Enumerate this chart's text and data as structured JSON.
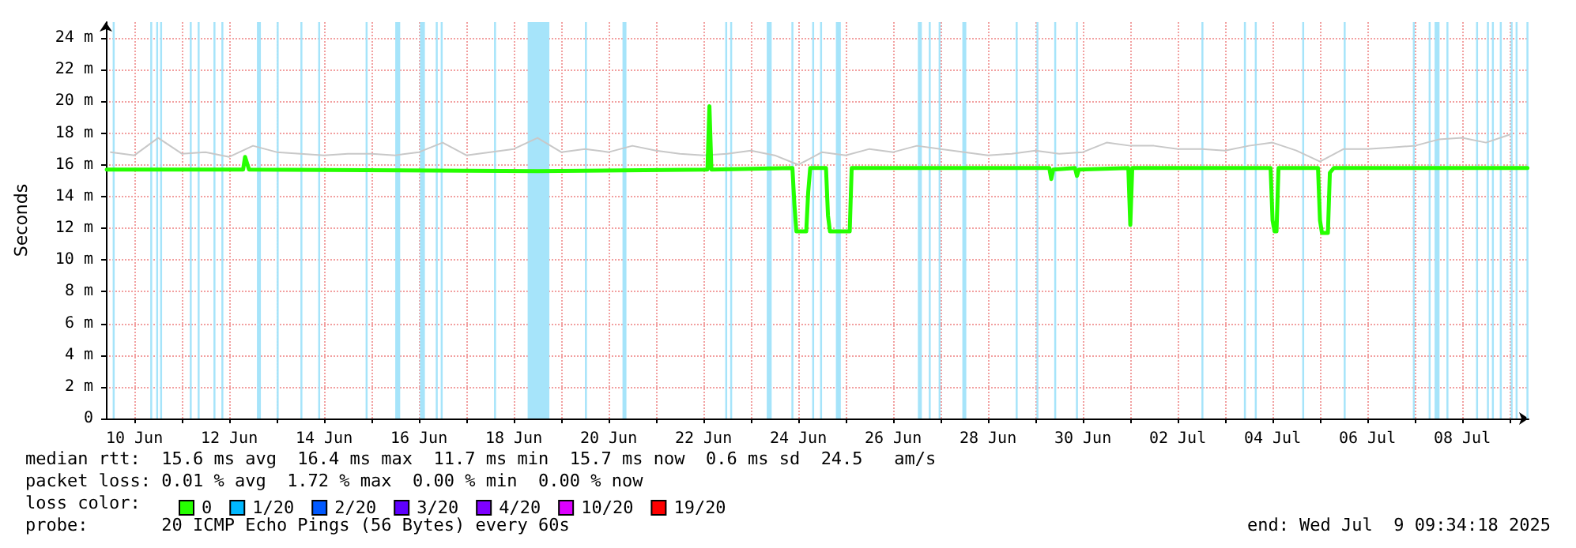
{
  "chart_data": {
    "type": "line",
    "ylabel": "Seconds",
    "legend_title": "loss color:",
    "legend": "bottom left",
    "grid": true,
    "marker": "none",
    "xlim": [
      "2025-06-09T09:34",
      "2025-07-09T09:34"
    ],
    "xticks": [
      {
        "value": "2025-06-10",
        "label": "10 Jun"
      },
      {
        "value": "2025-06-11",
        "label": null
      },
      {
        "value": "2025-06-12",
        "label": "12 Jun"
      },
      {
        "value": "2025-06-13",
        "label": null
      },
      {
        "value": "2025-06-14",
        "label": "14 Jun"
      },
      {
        "value": "2025-06-15",
        "label": null
      },
      {
        "value": "2025-06-16",
        "label": "16 Jun"
      },
      {
        "value": "2025-06-17",
        "label": null
      },
      {
        "value": "2025-06-18",
        "label": "18 Jun"
      },
      {
        "value": "2025-06-19",
        "label": null
      },
      {
        "value": "2025-06-20",
        "label": "20 Jun"
      },
      {
        "value": "2025-06-21",
        "label": null
      },
      {
        "value": "2025-06-22",
        "label": "22 Jun"
      },
      {
        "value": "2025-06-23",
        "label": null
      },
      {
        "value": "2025-06-24",
        "label": "24 Jun"
      },
      {
        "value": "2025-06-25",
        "label": null
      },
      {
        "value": "2025-06-26",
        "label": "26 Jun"
      },
      {
        "value": "2025-06-27",
        "label": null
      },
      {
        "value": "2025-06-28",
        "label": "28 Jun"
      },
      {
        "value": "2025-06-29",
        "label": null
      },
      {
        "value": "2025-06-30",
        "label": "30 Jun"
      },
      {
        "value": "2025-07-01",
        "label": null
      },
      {
        "value": "2025-07-02",
        "label": "02 Jul"
      },
      {
        "value": "2025-07-03",
        "label": null
      },
      {
        "value": "2025-07-04",
        "label": "04 Jul"
      },
      {
        "value": "2025-07-05",
        "label": null
      },
      {
        "value": "2025-07-06",
        "label": "06 Jul"
      },
      {
        "value": "2025-07-07",
        "label": null
      },
      {
        "value": "2025-07-08",
        "label": "08 Jul"
      },
      {
        "value": "2025-07-09",
        "label": null
      }
    ],
    "ylim": [
      0,
      25
    ],
    "yticks": [
      0,
      {
        "value": 2,
        "label": "2 m"
      },
      {
        "value": 4,
        "label": "4 m"
      },
      {
        "value": 6,
        "label": "6 m"
      },
      {
        "value": 8,
        "label": "8 m"
      },
      {
        "value": 10,
        "label": "10 m"
      },
      {
        "value": 12,
        "label": "12 m"
      },
      {
        "value": 14,
        "label": "14 m"
      },
      {
        "value": 16,
        "label": "16 m"
      },
      {
        "value": 18,
        "label": "18 m"
      },
      {
        "value": 20,
        "label": "20 m"
      },
      {
        "value": 22,
        "label": "22 m"
      },
      {
        "value": 24,
        "label": "24 m"
      }
    ],
    "series": [
      {
        "color": "#c8c8c8",
        "x": [
          "2025-06-09T12:00",
          "2025-06-10T00:00",
          "2025-06-10T12:00",
          "2025-06-11T00:00",
          "2025-06-11T12:00",
          "2025-06-12T00:00",
          "2025-06-12T12:00",
          "2025-06-13T00:00",
          "2025-06-13T12:00",
          "2025-06-14T00:00",
          "2025-06-14T12:00",
          "2025-06-15T00:00",
          "2025-06-15T12:00",
          "2025-06-16T00:00",
          "2025-06-16T12:00",
          "2025-06-17T00:00",
          "2025-06-17T12:00",
          "2025-06-18T00:00",
          "2025-06-18T12:00",
          "2025-06-19T00:00",
          "2025-06-19T12:00",
          "2025-06-20T00:00",
          "2025-06-20T12:00",
          "2025-06-21T00:00",
          "2025-06-21T12:00",
          "2025-06-22T00:00",
          "2025-06-22T12:00",
          "2025-06-23T00:00",
          "2025-06-23T12:00",
          "2025-06-24T00:00",
          "2025-06-24T12:00",
          "2025-06-25T00:00",
          "2025-06-25T12:00",
          "2025-06-26T00:00",
          "2025-06-26T12:00",
          "2025-06-27T00:00",
          "2025-06-27T12:00",
          "2025-06-28T00:00",
          "2025-06-28T12:00",
          "2025-06-29T00:00",
          "2025-06-29T12:00",
          "2025-06-30T00:00",
          "2025-06-30T12:00",
          "2025-07-01T00:00",
          "2025-07-01T12:00",
          "2025-07-02T00:00",
          "2025-07-02T12:00",
          "2025-07-03T00:00",
          "2025-07-03T12:00",
          "2025-07-04T00:00",
          "2025-07-04T12:00",
          "2025-07-05T00:00",
          "2025-07-05T12:00",
          "2025-07-06T00:00",
          "2025-07-06T12:00",
          "2025-07-07T00:00",
          "2025-07-07T12:00",
          "2025-07-08T00:00",
          "2025-07-08T12:00",
          "2025-07-09T00:00"
        ],
        "values": [
          16.8,
          16.6,
          17.7,
          16.7,
          16.8,
          16.5,
          17.2,
          16.8,
          16.7,
          16.6,
          16.7,
          16.7,
          16.6,
          16.8,
          17.4,
          16.6,
          16.8,
          17.0,
          17.7,
          16.8,
          17.0,
          16.8,
          17.2,
          16.9,
          16.7,
          16.6,
          16.7,
          16.9,
          16.6,
          16.0,
          16.8,
          16.6,
          17.0,
          16.8,
          17.2,
          17.0,
          16.8,
          16.6,
          16.7,
          16.9,
          16.7,
          16.8,
          17.4,
          17.2,
          17.2,
          17.0,
          17.0,
          16.9,
          17.2,
          17.4,
          16.9,
          16.2,
          17.0,
          17.0,
          17.1,
          17.2,
          17.6,
          17.7,
          17.4,
          17.9
        ]
      },
      {
        "name": "0",
        "color": "#26ff00",
        "x": [
          "2025-06-09T10:00",
          "2025-06-12T07:00",
          "2025-06-12T08:00",
          "2025-06-12T10:00",
          "2025-06-18T12:00",
          "2025-06-22T02:00",
          "2025-06-22T03:00",
          "2025-06-22T04:00",
          "2025-06-23T21:00",
          "2025-06-23T22:00",
          "2025-06-23T23:00",
          "2025-06-24T04:00",
          "2025-06-24T05:00",
          "2025-06-24T06:00",
          "2025-06-24T14:00",
          "2025-06-24T15:00",
          "2025-06-24T16:00",
          "2025-06-25T02:00",
          "2025-06-25T03:00",
          "2025-06-29T07:00",
          "2025-06-29T08:00",
          "2025-06-29T09:00",
          "2025-06-29T20:00",
          "2025-06-29T21:00",
          "2025-06-29T22:00",
          "2025-06-30T23:00",
          "2025-07-01T00:00",
          "2025-07-01T01:00",
          "2025-07-03T23:00",
          "2025-07-04T00:00",
          "2025-07-04T01:00",
          "2025-07-04T02:00",
          "2025-07-04T03:00",
          "2025-07-04T23:00",
          "2025-07-05T00:00",
          "2025-07-05T01:00",
          "2025-07-05T04:00",
          "2025-07-05T05:00",
          "2025-07-05T07:00",
          "2025-07-09T09:00"
        ],
        "values": [
          15.7,
          15.7,
          16.5,
          15.7,
          15.6,
          15.7,
          19.7,
          15.7,
          15.8,
          13.5,
          11.8,
          11.8,
          14.3,
          15.8,
          15.8,
          12.8,
          11.8,
          11.8,
          15.8,
          15.8,
          15.1,
          15.7,
          15.8,
          15.3,
          15.7,
          15.8,
          12.2,
          15.8,
          15.8,
          12.5,
          11.8,
          11.8,
          15.8,
          15.8,
          12.5,
          11.7,
          11.7,
          15.5,
          15.8,
          15.8
        ]
      },
      {
        "name": "1/20",
        "color": "#00b8ff"
      },
      {
        "name": "2/20",
        "color": "#0059ff"
      },
      {
        "name": "3/20",
        "color": "#5e00ff"
      },
      {
        "name": "4/20",
        "color": "#7e00ff"
      },
      {
        "name": "10/20",
        "color": "#dd00ff"
      },
      {
        "name": "19/20",
        "color": "#ff0000"
      }
    ],
    "bands": [
      {
        "axis": "x",
        "from": "2025-06-09T13:00",
        "to": "2025-06-09T14:00",
        "color": "#a6e4fa"
      },
      {
        "axis": "x",
        "from": "2025-06-10T08:00",
        "to": "2025-06-10T09:00",
        "color": "#a6e4fa"
      },
      {
        "axis": "x",
        "from": "2025-06-10T11:00",
        "to": "2025-06-10T12:00",
        "color": "#a6e4fa"
      },
      {
        "axis": "x",
        "from": "2025-06-10T13:00",
        "to": "2025-06-10T14:00",
        "color": "#a6e4fa"
      },
      {
        "axis": "x",
        "from": "2025-06-11T04:00",
        "to": "2025-06-11T05:00",
        "color": "#a6e4fa"
      },
      {
        "axis": "x",
        "from": "2025-06-11T08:00",
        "to": "2025-06-11T09:00",
        "color": "#a6e4fa"
      },
      {
        "axis": "x",
        "from": "2025-06-11T16:00",
        "to": "2025-06-11T17:00",
        "color": "#a6e4fa"
      },
      {
        "axis": "x",
        "from": "2025-06-11T20:00",
        "to": "2025-06-11T21:00",
        "color": "#a6e4fa"
      },
      {
        "axis": "x",
        "from": "2025-06-12T14:00",
        "to": "2025-06-12T16:00",
        "color": "#a6e4fa"
      },
      {
        "axis": "x",
        "from": "2025-06-13T00:00",
        "to": "2025-06-13T01:00",
        "color": "#a6e4fa"
      },
      {
        "axis": "x",
        "from": "2025-06-13T12:00",
        "to": "2025-06-13T13:00",
        "color": "#a6e4fa"
      },
      {
        "axis": "x",
        "from": "2025-06-13T21:00",
        "to": "2025-06-13T22:00",
        "color": "#a6e4fa"
      },
      {
        "axis": "x",
        "from": "2025-06-14T21:00",
        "to": "2025-06-14T22:00",
        "color": "#a6e4fa"
      },
      {
        "axis": "x",
        "from": "2025-06-15T12:00",
        "to": "2025-06-15T14:30",
        "color": "#a6e4fa"
      },
      {
        "axis": "x",
        "from": "2025-06-16T00:30",
        "to": "2025-06-16T03:00",
        "color": "#a6e4fa"
      },
      {
        "axis": "x",
        "from": "2025-06-16T08:30",
        "to": "2025-06-16T09:30",
        "color": "#a6e4fa"
      },
      {
        "axis": "x",
        "from": "2025-06-16T11:00",
        "to": "2025-06-16T12:00",
        "color": "#a6e4fa"
      },
      {
        "axis": "x",
        "from": "2025-06-17T14:00",
        "to": "2025-06-17T15:00",
        "color": "#a6e4fa"
      },
      {
        "axis": "x",
        "from": "2025-06-18T07:00",
        "to": "2025-06-18T18:00",
        "color": "#a6e4fa"
      },
      {
        "axis": "x",
        "from": "2025-06-19T12:00",
        "to": "2025-06-19T13:00",
        "color": "#a6e4fa"
      },
      {
        "axis": "x",
        "from": "2025-06-20T07:00",
        "to": "2025-06-20T09:00",
        "color": "#a6e4fa"
      },
      {
        "axis": "x",
        "from": "2025-06-22T11:00",
        "to": "2025-06-22T12:00",
        "color": "#a6e4fa"
      },
      {
        "axis": "x",
        "from": "2025-06-22T13:30",
        "to": "2025-06-22T14:30",
        "color": "#a6e4fa"
      },
      {
        "axis": "x",
        "from": "2025-06-23T08:00",
        "to": "2025-06-23T10:30",
        "color": "#a6e4fa"
      },
      {
        "axis": "x",
        "from": "2025-06-23T20:30",
        "to": "2025-06-23T21:30",
        "color": "#a6e4fa"
      },
      {
        "axis": "x",
        "from": "2025-06-24T07:00",
        "to": "2025-06-24T08:00",
        "color": "#a6e4fa"
      },
      {
        "axis": "x",
        "from": "2025-06-24T11:00",
        "to": "2025-06-24T12:00",
        "color": "#a6e4fa"
      },
      {
        "axis": "x",
        "from": "2025-06-24T19:00",
        "to": "2025-06-24T21:30",
        "color": "#a6e4fa"
      },
      {
        "axis": "x",
        "from": "2025-06-26T12:30",
        "to": "2025-06-26T14:30",
        "color": "#a6e4fa"
      },
      {
        "axis": "x",
        "from": "2025-06-26T18:00",
        "to": "2025-06-26T19:00",
        "color": "#a6e4fa"
      },
      {
        "axis": "x",
        "from": "2025-06-26T23:00",
        "to": "2025-06-27T00:00",
        "color": "#a6e4fa"
      },
      {
        "axis": "x",
        "from": "2025-06-27T11:00",
        "to": "2025-06-27T13:00",
        "color": "#a6e4fa"
      },
      {
        "axis": "x",
        "from": "2025-06-28T14:00",
        "to": "2025-06-28T15:00",
        "color": "#a6e4fa"
      },
      {
        "axis": "x",
        "from": "2025-06-29T00:30",
        "to": "2025-06-29T01:30",
        "color": "#a6e4fa"
      },
      {
        "axis": "x",
        "from": "2025-06-29T09:30",
        "to": "2025-06-29T10:30",
        "color": "#a6e4fa"
      },
      {
        "axis": "x",
        "from": "2025-06-29T20:30",
        "to": "2025-06-29T21:30",
        "color": "#a6e4fa"
      },
      {
        "axis": "x",
        "from": "2025-07-02T12:00",
        "to": "2025-07-02T13:00",
        "color": "#a6e4fa"
      },
      {
        "axis": "x",
        "from": "2025-07-03T09:30",
        "to": "2025-07-03T10:30",
        "color": "#a6e4fa"
      },
      {
        "axis": "x",
        "from": "2025-07-03T15:00",
        "to": "2025-07-03T16:00",
        "color": "#a6e4fa"
      },
      {
        "axis": "x",
        "from": "2025-07-04T15:00",
        "to": "2025-07-04T16:00",
        "color": "#a6e4fa"
      },
      {
        "axis": "x",
        "from": "2025-07-05T12:00",
        "to": "2025-07-05T13:00",
        "color": "#a6e4fa"
      },
      {
        "axis": "x",
        "from": "2025-07-06T23:00",
        "to": "2025-07-07T00:00",
        "color": "#a6e4fa"
      },
      {
        "axis": "x",
        "from": "2025-07-07T07:00",
        "to": "2025-07-07T08:00",
        "color": "#a6e4fa"
      },
      {
        "axis": "x",
        "from": "2025-07-07T10:00",
        "to": "2025-07-07T12:30",
        "color": "#a6e4fa"
      },
      {
        "axis": "x",
        "from": "2025-07-07T16:00",
        "to": "2025-07-07T17:00",
        "color": "#a6e4fa"
      },
      {
        "axis": "x",
        "from": "2025-07-08T07:00",
        "to": "2025-07-08T08:00",
        "color": "#a6e4fa"
      },
      {
        "axis": "x",
        "from": "2025-07-08T12:30",
        "to": "2025-07-08T13:30",
        "color": "#a6e4fa"
      },
      {
        "axis": "x",
        "from": "2025-07-08T15:00",
        "to": "2025-07-08T16:00",
        "color": "#a6e4fa"
      },
      {
        "axis": "x",
        "from": "2025-07-08T19:00",
        "to": "2025-07-08T20:00",
        "color": "#a6e4fa"
      },
      {
        "axis": "x",
        "from": "2025-07-09T00:30",
        "to": "2025-07-09T01:30",
        "color": "#a6e4fa"
      },
      {
        "axis": "x",
        "from": "2025-07-09T03:00",
        "to": "2025-07-09T04:00",
        "color": "#a6e4fa"
      },
      {
        "axis": "x",
        "from": "2025-07-09T08:30",
        "to": "2025-07-09T09:30",
        "color": "#a6e4fa"
      }
    ],
    "annotations": [
      "median rtt:  15.6 ms avg  16.4 ms max  11.7 ms min  15.7 ms now  0.6 ms sd  24.5   am/s",
      "packet loss: 0.01 % avg  1.72 % max  0.00 % min  0.00 % now",
      "probe:       20 ICMP Echo Pings (56 Bytes) every 60s",
      "end: Wed Jul  9 09:34:18 2025"
    ]
  }
}
